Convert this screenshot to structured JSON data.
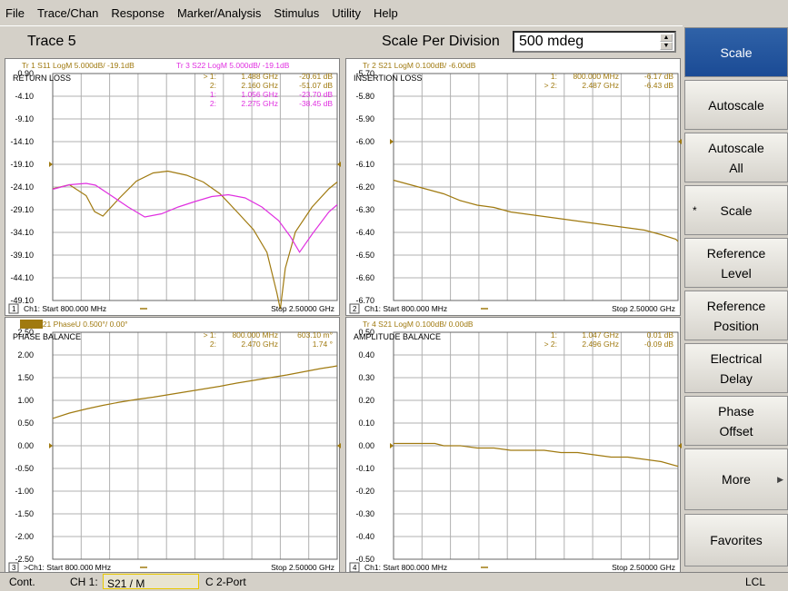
{
  "menu": [
    "File",
    "Trace/Chan",
    "Response",
    "Marker/Analysis",
    "Stimulus",
    "Utility",
    "Help"
  ],
  "header": {
    "trace_title": "Trace 5",
    "spd_label": "Scale Per Division",
    "spd_value": "500 mdeg"
  },
  "softkeys": [
    {
      "label": "Scale",
      "active": true
    },
    {
      "label": "Autoscale"
    },
    {
      "label": "Autoscale\nAll"
    },
    {
      "label": "Scale",
      "star": true
    },
    {
      "label": "Reference\nLevel"
    },
    {
      "label": "Reference\nPosition"
    },
    {
      "label": "Electrical\nDelay"
    },
    {
      "label": "Phase\nOffset"
    },
    {
      "label": "More",
      "arrow": true
    },
    {
      "label": "Favorites"
    }
  ],
  "status": {
    "mode": "Cont.",
    "ch": "CH 1:",
    "param": "S21 / M",
    "cal": "C  2-Port",
    "lcl": "LCL"
  },
  "colors": {
    "gold": "#a07a10",
    "magenta": "#e030e0",
    "grid": "#b0b0b0",
    "active_key": "#1b4b95"
  },
  "panes": [
    {
      "num": "1",
      "headers": [
        {
          "text": "Tr  1  S11 LogM 5.000dB/  -19.1dB",
          "color": "#a07a10"
        },
        {
          "text": "Tr  3  S22 LogM 5.000dB/  -19.1dB",
          "color": "#e030e0"
        }
      ],
      "title": "RETURN LOSS",
      "yticks": [
        "0.90",
        "-4.10",
        "-9.10",
        "-14.10",
        "-19.10",
        "-24.10",
        "-29.10",
        "-34.10",
        "-39.10",
        "-44.10",
        "-49.10"
      ],
      "markers": [
        {
          "sel": "> 1:",
          "freq": "1.488 GHz",
          "val": "-20.61 dB",
          "color": "#a07a10"
        },
        {
          "sel": "2:",
          "freq": "2.160 GHz",
          "val": "-51.07 dB",
          "color": "#a07a10"
        },
        {
          "sel": "1:",
          "freq": "1.056 GHz",
          "val": "-23.70 dB",
          "color": "#e030e0"
        },
        {
          "sel": "2:",
          "freq": "2.275 GHz",
          "val": "-38.45 dB",
          "color": "#e030e0"
        }
      ],
      "footer": "Ch1: Start  800.000 MHz",
      "stop": "Stop  2.50000 GHz"
    },
    {
      "num": "2",
      "headers": [
        {
          "text": "Tr  2  S21 LogM 0.100dB/  -6.00dB",
          "color": "#a07a10"
        }
      ],
      "title": "INSERTION LOSS",
      "yticks": [
        "-5.70",
        "-5.80",
        "-5.90",
        "-6.00",
        "-6.10",
        "-6.20",
        "-6.30",
        "-6.40",
        "-6.50",
        "-6.60",
        "-6.70"
      ],
      "markers": [
        {
          "sel": "1:",
          "freq": "800.000 MHz",
          "val": "-6.17 dB",
          "color": "#a07a10"
        },
        {
          "sel": "> 2:",
          "freq": "2.487 GHz",
          "val": "-6.43 dB",
          "color": "#a07a10"
        }
      ],
      "footer": "Ch1: Start  800.000 MHz",
      "stop": "Stop  2.50000 GHz"
    },
    {
      "num": "3",
      "headers": [
        {
          "text": "Tr  5  S21 PhaseU 0.500°/  0.00°",
          "color": "#a07a10",
          "box": "Tr  5"
        }
      ],
      "title": "PHASE BALANCE",
      "yticks": [
        "2.50",
        "2.00",
        "1.50",
        "1.00",
        "0.50",
        "0.00",
        "-0.50",
        "-1.00",
        "-1.50",
        "-2.00",
        "-2.50"
      ],
      "markers": [
        {
          "sel": "> 1:",
          "freq": "800.000 MHz",
          "val": "603.10 m°",
          "color": "#a07a10"
        },
        {
          "sel": "2:",
          "freq": "2.470 GHz",
          "val": "1.74 °",
          "color": "#a07a10"
        }
      ],
      "footer": ">Ch1: Start  800.000 MHz",
      "stop": "Stop  2.50000 GHz"
    },
    {
      "num": "4",
      "headers": [
        {
          "text": "Tr  4  S21 LogM 0.100dB/  0.00dB",
          "color": "#a07a10"
        }
      ],
      "title": "AMPLITUDE BALANCE",
      "yticks": [
        "0.50",
        "0.40",
        "0.30",
        "0.20",
        "0.10",
        "0.00",
        "-0.10",
        "-0.20",
        "-0.30",
        "-0.40",
        "-0.50"
      ],
      "markers": [
        {
          "sel": "1:",
          "freq": "1.047 GHz",
          "val": "0.01 dB",
          "color": "#a07a10"
        },
        {
          "sel": "> 2:",
          "freq": "2.496 GHz",
          "val": "-0.09 dB",
          "color": "#a07a10"
        }
      ],
      "footer": "Ch1: Start  800.000 MHz",
      "stop": "Stop  2.50000 GHz"
    }
  ],
  "chart_data": [
    {
      "type": "line",
      "title": "RETURN LOSS",
      "xlabel": "GHz",
      "xlim": [
        0.8,
        2.5
      ],
      "ylim": [
        -49.1,
        0.9
      ],
      "series": [
        {
          "name": "Tr 1 S11",
          "color": "#a07a10",
          "x": [
            0.8,
            0.9,
            1.0,
            1.05,
            1.1,
            1.2,
            1.3,
            1.4,
            1.488,
            1.6,
            1.7,
            1.8,
            1.9,
            2.0,
            2.08,
            2.14,
            2.16,
            2.19,
            2.25,
            2.35,
            2.45,
            2.5
          ],
          "y": [
            -24.5,
            -23.6,
            -26.0,
            -29.5,
            -30.5,
            -26.5,
            -22.8,
            -21.0,
            -20.6,
            -21.5,
            -23.0,
            -25.6,
            -29.5,
            -33.5,
            -38.5,
            -47.5,
            -51.0,
            -42.0,
            -34.0,
            -28.5,
            -24.5,
            -23.0
          ]
        },
        {
          "name": "Tr 3 S22",
          "color": "#e030e0",
          "x": [
            0.8,
            0.9,
            1.0,
            1.056,
            1.15,
            1.25,
            1.35,
            1.45,
            1.55,
            1.65,
            1.75,
            1.85,
            1.95,
            2.05,
            2.15,
            2.22,
            2.275,
            2.35,
            2.45,
            2.5
          ],
          "y": [
            -24.6,
            -23.6,
            -23.3,
            -23.7,
            -26.0,
            -28.5,
            -30.7,
            -30.0,
            -28.5,
            -27.3,
            -26.2,
            -25.8,
            -26.5,
            -28.5,
            -31.5,
            -35.0,
            -38.45,
            -34.5,
            -29.6,
            -28.0
          ]
        }
      ]
    },
    {
      "type": "line",
      "title": "INSERTION LOSS",
      "xlabel": "GHz",
      "xlim": [
        0.8,
        2.5
      ],
      "ylim": [
        -6.7,
        -5.7
      ],
      "series": [
        {
          "name": "Tr 2 S21",
          "color": "#a07a10",
          "x": [
            0.8,
            0.9,
            1.0,
            1.1,
            1.2,
            1.3,
            1.4,
            1.5,
            1.6,
            1.7,
            1.8,
            1.9,
            2.0,
            2.1,
            2.2,
            2.3,
            2.4,
            2.487,
            2.5
          ],
          "y": [
            -6.17,
            -6.19,
            -6.21,
            -6.23,
            -6.26,
            -6.28,
            -6.29,
            -6.31,
            -6.32,
            -6.33,
            -6.34,
            -6.35,
            -6.36,
            -6.37,
            -6.38,
            -6.39,
            -6.41,
            -6.43,
            -6.44
          ]
        }
      ]
    },
    {
      "type": "line",
      "title": "PHASE BALANCE",
      "xlabel": "GHz",
      "xlim": [
        0.8,
        2.5
      ],
      "ylim": [
        -2.5,
        2.5
      ],
      "series": [
        {
          "name": "Tr 5 S21",
          "color": "#a07a10",
          "x": [
            0.8,
            0.9,
            1.0,
            1.1,
            1.2,
            1.3,
            1.4,
            1.5,
            1.6,
            1.7,
            1.8,
            1.9,
            2.0,
            2.1,
            2.2,
            2.3,
            2.4,
            2.47,
            2.5
          ],
          "y": [
            0.603,
            0.72,
            0.81,
            0.89,
            0.96,
            1.02,
            1.07,
            1.13,
            1.19,
            1.25,
            1.31,
            1.38,
            1.44,
            1.5,
            1.56,
            1.63,
            1.7,
            1.74,
            1.76
          ]
        }
      ]
    },
    {
      "type": "line",
      "title": "AMPLITUDE BALANCE",
      "xlabel": "GHz",
      "xlim": [
        0.8,
        2.5
      ],
      "ylim": [
        -0.5,
        0.5
      ],
      "series": [
        {
          "name": "Tr 4 S21",
          "color": "#a07a10",
          "x": [
            0.8,
            0.9,
            1.0,
            1.047,
            1.1,
            1.2,
            1.3,
            1.4,
            1.5,
            1.6,
            1.7,
            1.8,
            1.9,
            2.0,
            2.1,
            2.2,
            2.3,
            2.4,
            2.496,
            2.5
          ],
          "y": [
            0.01,
            0.01,
            0.01,
            0.01,
            0.0,
            0.0,
            -0.01,
            -0.01,
            -0.02,
            -0.02,
            -0.02,
            -0.03,
            -0.03,
            -0.04,
            -0.05,
            -0.05,
            -0.06,
            -0.07,
            -0.09,
            -0.09
          ]
        }
      ]
    }
  ]
}
